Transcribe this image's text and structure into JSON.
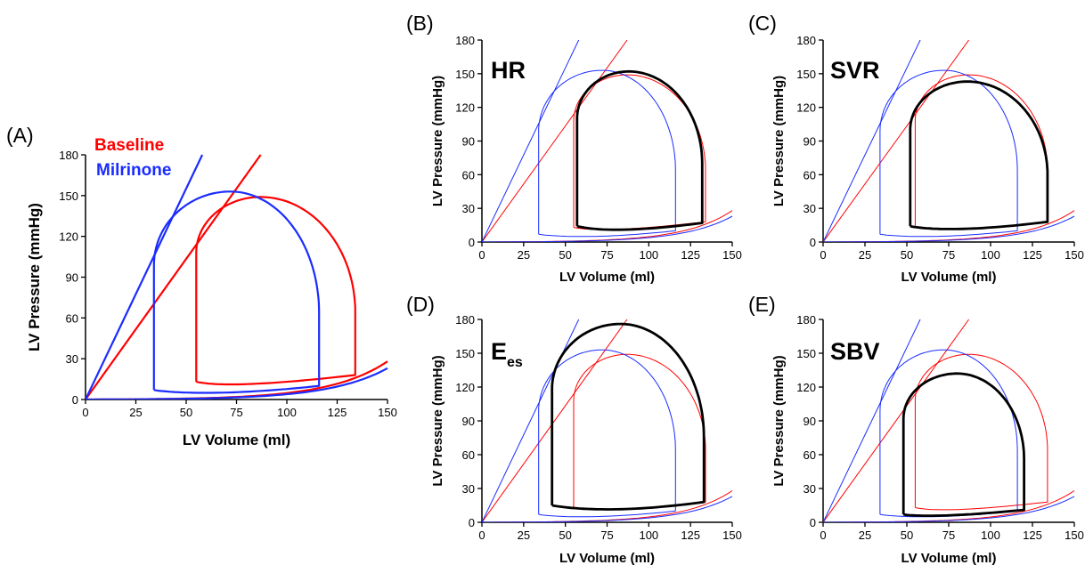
{
  "colors": {
    "baseline": "#ff0000",
    "milrinone": "#1a2cff",
    "intervention": "#000000"
  },
  "chart_data": [
    {
      "id": "A",
      "type": "line",
      "panel_label": "(A)",
      "inset_label": "",
      "legend": [
        "Baseline",
        "Milrinone"
      ],
      "xlabel": "LV Volume (ml)",
      "ylabel": "LV Pressure (mmHg)",
      "xlim": [
        0,
        150
      ],
      "ylim": [
        0,
        180
      ],
      "xticks": [
        "0",
        "25",
        "50",
        "75",
        "100",
        "125",
        "150"
      ],
      "yticks": [
        "0",
        "30",
        "60",
        "90",
        "120",
        "150",
        "180"
      ],
      "series": [
        {
          "name": "Baseline",
          "color": "#ff0000",
          "loop": {
            "v_es": 55,
            "v_ed": 134,
            "p_peak": 149,
            "v_peak": 87,
            "p_ej_start": 108,
            "p_ej_end": 64,
            "p_ed": 18,
            "p_min": 9,
            "v_min": 75,
            "p_fill_start": 13
          },
          "espvr": [
            [
              0,
              0
            ],
            [
              87,
              180
            ]
          ],
          "edpvr_end": [
            150,
            28
          ]
        },
        {
          "name": "Milrinone",
          "color": "#1a2cff",
          "loop": {
            "v_es": 34,
            "v_ed": 116,
            "p_peak": 153,
            "v_peak": 72,
            "p_ej_start": 99,
            "p_ej_end": 64,
            "p_ed": 10,
            "p_min": 3,
            "v_min": 65,
            "p_fill_start": 7
          },
          "espvr": [
            [
              0,
              0
            ],
            [
              58,
              180
            ]
          ],
          "edpvr_end": [
            150,
            23
          ]
        }
      ]
    },
    {
      "id": "B",
      "type": "line",
      "panel_label": "(B)",
      "inset_label": "HR",
      "xlabel": "LV Volume (ml)",
      "ylabel": "LV Pressure (mmHg)",
      "xlim": [
        0,
        150
      ],
      "ylim": [
        0,
        180
      ],
      "xticks": [
        "0",
        "25",
        "50",
        "75",
        "100",
        "125",
        "150"
      ],
      "yticks": [
        "0",
        "30",
        "60",
        "90",
        "120",
        "150",
        "180"
      ],
      "series": [
        {
          "color": "#ff0000",
          "loop": {
            "v_es": 55,
            "v_ed": 134,
            "p_peak": 149,
            "v_peak": 87,
            "p_ej_start": 108,
            "p_ej_end": 64,
            "p_ed": 18,
            "p_min": 9,
            "v_min": 75,
            "p_fill_start": 13
          },
          "espvr": [
            [
              0,
              0
            ],
            [
              87,
              180
            ]
          ],
          "edpvr_end": [
            150,
            28
          ]
        },
        {
          "color": "#1a2cff",
          "loop": {
            "v_es": 34,
            "v_ed": 116,
            "p_peak": 153,
            "v_peak": 72,
            "p_ej_start": 99,
            "p_ej_end": 64,
            "p_ed": 10,
            "p_min": 3,
            "v_min": 65,
            "p_fill_start": 7
          },
          "espvr": [
            [
              0,
              0
            ],
            [
              58,
              180
            ]
          ],
          "edpvr_end": [
            150,
            23
          ]
        },
        {
          "color": "#000000",
          "loop": {
            "v_es": 57,
            "v_ed": 132,
            "p_peak": 152,
            "v_peak": 88,
            "p_ej_start": 110,
            "p_ej_end": 70,
            "p_ed": 17,
            "p_min": 8,
            "v_min": 80,
            "p_fill_start": 14
          }
        }
      ]
    },
    {
      "id": "C",
      "type": "line",
      "panel_label": "(C)",
      "inset_label": "SVR",
      "xlabel": "LV Volume (ml)",
      "ylabel": "LV Pressure (mmHg)",
      "xlim": [
        0,
        150
      ],
      "ylim": [
        0,
        180
      ],
      "xticks": [
        "0",
        "25",
        "50",
        "75",
        "100",
        "125",
        "150"
      ],
      "yticks": [
        "0",
        "30",
        "60",
        "90",
        "120",
        "150",
        "180"
      ],
      "series": [
        {
          "color": "#ff0000",
          "loop": {
            "v_es": 55,
            "v_ed": 134,
            "p_peak": 149,
            "v_peak": 87,
            "p_ej_start": 108,
            "p_ej_end": 64,
            "p_ed": 18,
            "p_min": 9,
            "v_min": 75,
            "p_fill_start": 13
          },
          "espvr": [
            [
              0,
              0
            ],
            [
              87,
              180
            ]
          ],
          "edpvr_end": [
            150,
            28
          ]
        },
        {
          "color": "#1a2cff",
          "loop": {
            "v_es": 34,
            "v_ed": 116,
            "p_peak": 153,
            "v_peak": 72,
            "p_ej_start": 99,
            "p_ej_end": 64,
            "p_ed": 10,
            "p_min": 3,
            "v_min": 65,
            "p_fill_start": 7
          },
          "espvr": [
            [
              0,
              0
            ],
            [
              58,
              180
            ]
          ],
          "edpvr_end": [
            150,
            23
          ]
        },
        {
          "color": "#000000",
          "loop": {
            "v_es": 52,
            "v_ed": 134,
            "p_peak": 143,
            "v_peak": 86,
            "p_ej_start": 100,
            "p_ej_end": 60,
            "p_ed": 18,
            "p_min": 9,
            "v_min": 80,
            "p_fill_start": 14
          }
        }
      ]
    },
    {
      "id": "D",
      "type": "line",
      "panel_label": "(D)",
      "inset_label": "E",
      "inset_subscript": "es",
      "xlabel": "LV Volume (ml)",
      "ylabel": "LV Pressure (mmHg)",
      "xlim": [
        0,
        150
      ],
      "ylim": [
        0,
        180
      ],
      "xticks": [
        "0",
        "25",
        "50",
        "75",
        "100",
        "125",
        "150"
      ],
      "yticks": [
        "0",
        "30",
        "60",
        "90",
        "120",
        "150",
        "180"
      ],
      "series": [
        {
          "color": "#ff0000",
          "loop": {
            "v_es": 55,
            "v_ed": 134,
            "p_peak": 149,
            "v_peak": 87,
            "p_ej_start": 108,
            "p_ej_end": 64,
            "p_ed": 18,
            "p_min": 9,
            "v_min": 75,
            "p_fill_start": 13
          },
          "espvr": [
            [
              0,
              0
            ],
            [
              87,
              180
            ]
          ],
          "edpvr_end": [
            150,
            28
          ]
        },
        {
          "color": "#1a2cff",
          "loop": {
            "v_es": 34,
            "v_ed": 116,
            "p_peak": 153,
            "v_peak": 72,
            "p_ej_start": 99,
            "p_ej_end": 64,
            "p_ed": 10,
            "p_min": 3,
            "v_min": 65,
            "p_fill_start": 7
          },
          "espvr": [
            [
              0,
              0
            ],
            [
              58,
              180
            ]
          ],
          "edpvr_end": [
            150,
            23
          ]
        },
        {
          "color": "#000000",
          "loop": {
            "v_es": 42,
            "v_ed": 133,
            "p_peak": 176,
            "v_peak": 83,
            "p_ej_start": 118,
            "p_ej_end": 76,
            "p_ed": 18,
            "p_min": 8,
            "v_min": 78,
            "p_fill_start": 15
          }
        }
      ]
    },
    {
      "id": "E",
      "type": "line",
      "panel_label": "(E)",
      "inset_label": "SBV",
      "xlabel": "LV Volume (ml)",
      "ylabel": "LV Pressure (mmHg)",
      "xlim": [
        0,
        150
      ],
      "ylim": [
        0,
        180
      ],
      "xticks": [
        "0",
        "25",
        "50",
        "75",
        "100",
        "125",
        "150"
      ],
      "yticks": [
        "0",
        "30",
        "60",
        "90",
        "120",
        "150",
        "180"
      ],
      "series": [
        {
          "color": "#ff0000",
          "loop": {
            "v_es": 55,
            "v_ed": 134,
            "p_peak": 149,
            "v_peak": 87,
            "p_ej_start": 108,
            "p_ej_end": 64,
            "p_ed": 18,
            "p_min": 9,
            "v_min": 75,
            "p_fill_start": 13
          },
          "espvr": [
            [
              0,
              0
            ],
            [
              87,
              180
            ]
          ],
          "edpvr_end": [
            150,
            28
          ]
        },
        {
          "color": "#1a2cff",
          "loop": {
            "v_es": 34,
            "v_ed": 116,
            "p_peak": 153,
            "v_peak": 72,
            "p_ej_start": 99,
            "p_ej_end": 64,
            "p_ed": 10,
            "p_min": 3,
            "v_min": 65,
            "p_fill_start": 7
          },
          "espvr": [
            [
              0,
              0
            ],
            [
              58,
              180
            ]
          ],
          "edpvr_end": [
            150,
            23
          ]
        },
        {
          "color": "#000000",
          "loop": {
            "v_es": 48,
            "v_ed": 120,
            "p_peak": 132,
            "v_peak": 80,
            "p_ej_start": 92,
            "p_ej_end": 56,
            "p_ed": 11,
            "p_min": 5,
            "v_min": 72,
            "p_fill_start": 7
          }
        }
      ]
    }
  ]
}
